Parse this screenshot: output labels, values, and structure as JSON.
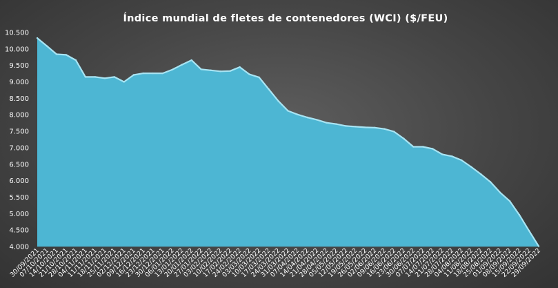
{
  "chart_data": {
    "type": "area",
    "title": "Índice mundial de fletes de contenedores (WCI) ($/FEU)",
    "xlabel": "",
    "ylabel": "",
    "ylim": [
      4000,
      10500
    ],
    "yticks": [
      4000,
      4500,
      5000,
      5500,
      6000,
      6500,
      7000,
      7500,
      8000,
      8500,
      9000,
      9500,
      10000,
      10500
    ],
    "ytick_labels": [
      "4.000",
      "4.500",
      "5.000",
      "5.500",
      "6.000",
      "6.500",
      "7.000",
      "7.500",
      "8.000",
      "8.500",
      "9.000",
      "9.500",
      "10.000",
      "10.500"
    ],
    "grid": false,
    "legend": "none",
    "fill_color": "#4db6d3",
    "line_color": "#a8e4f3",
    "categories": [
      "30/09/2021",
      "07/10/2021",
      "14/10/2021",
      "21/10/2021",
      "28/10/2021",
      "04/11/2021",
      "11/11/2021",
      "18/11/2021",
      "25/11/2021",
      "02/12/2021",
      "09/12/2021",
      "16/12/2021",
      "23/12/2021",
      "30/12/2021",
      "06/01/2022",
      "13/01/2022",
      "20/01/2022",
      "27/01/2022",
      "03/02/2022",
      "10/02/2022",
      "17/02/2022",
      "24/02/2022",
      "03/03/2022",
      "10/03/2022",
      "17/03/2022",
      "24/03/2022",
      "31/03/2022",
      "07/04/2022",
      "14/04/2022",
      "21/04/2022",
      "28/04/2022",
      "05/05/2022",
      "12/05/2022",
      "19/05/2022",
      "26/05/2022",
      "02/06/2022",
      "09/06/2022",
      "16/06/2022",
      "23/06/2022",
      "30/06/2022",
      "07/07/2022",
      "14/07/2022",
      "21/07/2022",
      "28/07/2022",
      "04/08/2022",
      "11/08/2022",
      "18/08/2022",
      "25/08/2022",
      "01/09/2022",
      "08/09/2022",
      "15/09/2022",
      "22/09/2022",
      "29/09/2022"
    ],
    "series": [
      {
        "name": "",
        "values": [
          10330,
          10090,
          9840,
          9820,
          9660,
          9150,
          9150,
          9110,
          9150,
          9000,
          9210,
          9260,
          9260,
          9260,
          9370,
          9520,
          9660,
          9380,
          9350,
          9320,
          9330,
          9450,
          9230,
          9140,
          8780,
          8420,
          8120,
          8010,
          7920,
          7850,
          7760,
          7720,
          7660,
          7640,
          7620,
          7610,
          7570,
          7490,
          7280,
          7030,
          7030,
          6970,
          6800,
          6740,
          6620,
          6420,
          6200,
          5960,
          5640,
          5380,
          4960,
          4480,
          4010
        ]
      }
    ]
  }
}
